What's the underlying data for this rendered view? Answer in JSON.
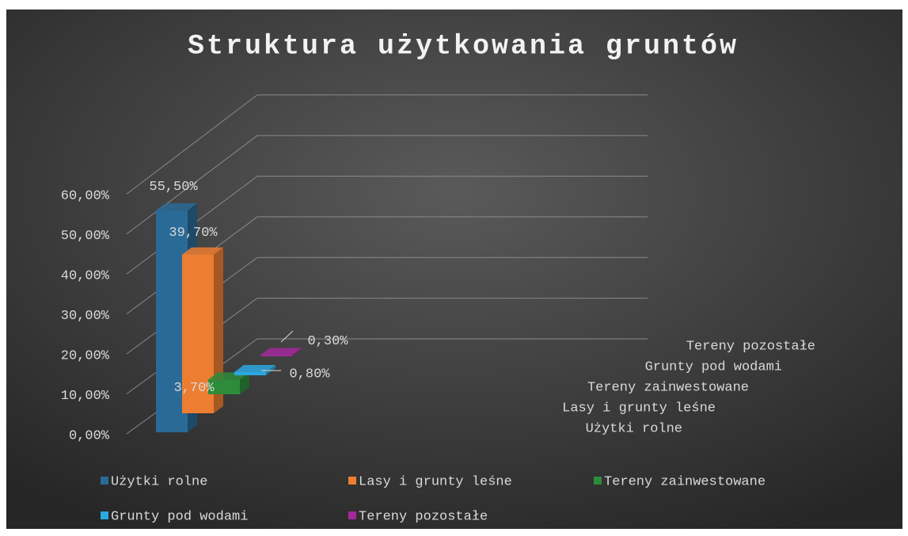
{
  "chart_data": {
    "type": "bar3d",
    "title": "Struktura użytkowania gruntów",
    "categories": [
      "Użytki rolne",
      "Lasy i grunty leśne",
      "Tereny zainwestowane",
      "Grunty pod wodami",
      "Tereny pozostałe"
    ],
    "values": [
      55.5,
      39.7,
      3.7,
      0.8,
      0.3
    ],
    "value_labels": [
      "55,50%",
      "39,70%",
      "3,70%",
      "0,80%",
      "0,30%"
    ],
    "colors": [
      "#2a6a96",
      "#ed7d31",
      "#2e8b3a",
      "#2ba8e0",
      "#a3299c"
    ],
    "ylim": [
      0,
      60
    ],
    "yticks": [
      {
        "value": 0,
        "label": "0,00%"
      },
      {
        "value": 10,
        "label": "10,00%"
      },
      {
        "value": 20,
        "label": "20,00%"
      },
      {
        "value": 30,
        "label": "30,00%"
      },
      {
        "value": 40,
        "label": "40,00%"
      },
      {
        "value": 50,
        "label": "50,00%"
      },
      {
        "value": 60,
        "label": "60,00%"
      }
    ],
    "grid": true,
    "legend": "bottom"
  }
}
